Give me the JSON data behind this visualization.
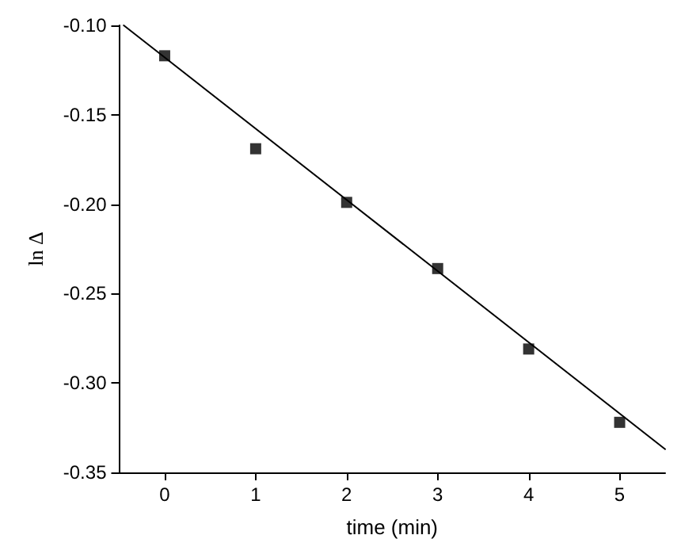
{
  "chart_data": {
    "type": "scatter",
    "xlabel": "time (min)",
    "ylabel": "ln Δ",
    "marker": "square",
    "grid": false,
    "xlim": [
      -0.5,
      5.5
    ],
    "xticks": [
      0,
      1,
      2,
      3,
      4,
      5
    ],
    "ylim": [
      -0.35,
      -0.1
    ],
    "yticks": [
      -0.35,
      {
        "value": -0.3,
        "label": "-0.30"
      },
      -0.25,
      {
        "value": -0.2,
        "label": "-0.20"
      },
      -0.15,
      {
        "value": -0.1,
        "label": "-0.10"
      }
    ],
    "series": [
      {
        "type": "scatter",
        "color": "#000000",
        "x": [
          0,
          1,
          2,
          3,
          4,
          5
        ],
        "values": [
          -0.117,
          -0.169,
          -0.199,
          -0.236,
          -0.281,
          -0.322
        ]
      },
      {
        "type": "line",
        "color": "#000000",
        "marker": "none",
        "line_style": "solid",
        "x": [
          -0.45,
          5.5
        ],
        "values": [
          -0.1,
          -0.337
        ]
      }
    ]
  }
}
